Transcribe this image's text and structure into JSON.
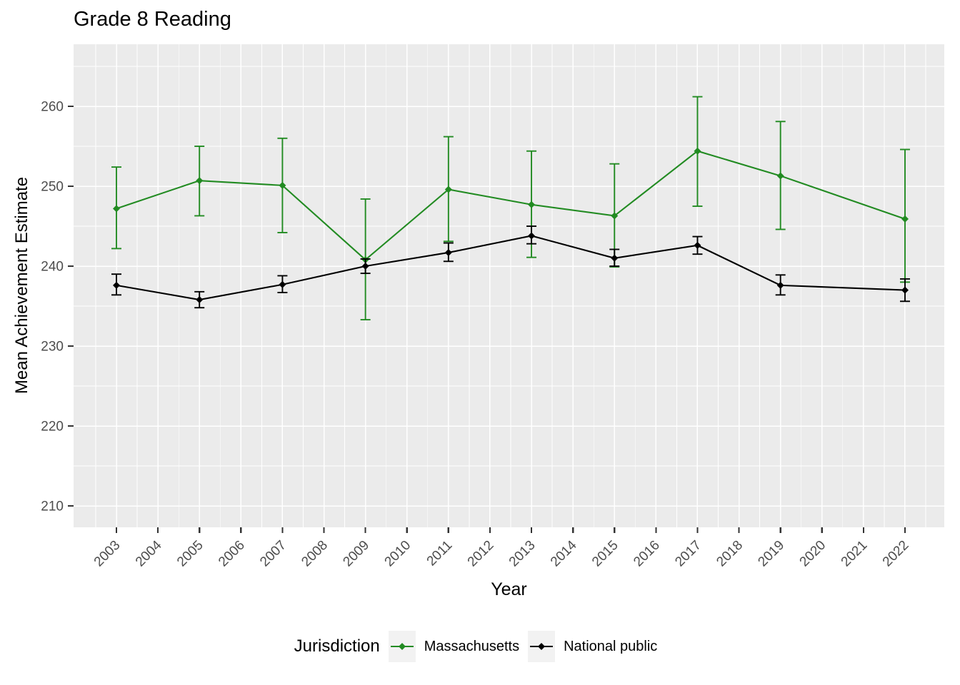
{
  "title": "Grade 8 Reading",
  "axes": {
    "x": {
      "label": "Year",
      "tick_labels": [
        "2003",
        "2004",
        "2005",
        "2006",
        "2007",
        "2008",
        "2009",
        "2010",
        "2011",
        "2012",
        "2013",
        "2014",
        "2015",
        "2016",
        "2017",
        "2018",
        "2019",
        "2020",
        "2021",
        "2022"
      ]
    },
    "y": {
      "label": "Mean Achievement Estimate",
      "tick_labels": [
        "210",
        "220",
        "230",
        "240",
        "250",
        "260"
      ]
    }
  },
  "legend": {
    "title": "Jurisdiction",
    "items": [
      {
        "label": "Massachusetts",
        "color": "#228B22"
      },
      {
        "label": "National public",
        "color": "#000000"
      }
    ]
  },
  "colors": {
    "panel_background": "#EBEBEB",
    "gridline": "#FFFFFF",
    "tick_mark": "#333333",
    "tick_label": "#4D4D4D",
    "title_text": "#000000",
    "legend_key_background": "#F2F2F2",
    "massachusetts": "#228B22",
    "national_public": "#000000"
  },
  "chart_data": {
    "type": "line",
    "title": "Grade 8 Reading",
    "xlabel": "Year",
    "ylabel": "Mean Achievement Estimate",
    "grid": true,
    "error_bars": true,
    "legend_position": "bottom",
    "legend_title": "Jurisdiction",
    "x_axis_ticks": [
      2003,
      2004,
      2005,
      2006,
      2007,
      2008,
      2009,
      2010,
      2011,
      2012,
      2013,
      2014,
      2015,
      2016,
      2017,
      2018,
      2019,
      2020,
      2021,
      2022
    ],
    "y_axis_ticks": [
      210,
      220,
      230,
      240,
      250,
      260
    ],
    "y_minor_ticks": [
      215,
      225,
      235,
      245,
      255,
      265
    ],
    "xlim": [
      2001.97,
      2022.95
    ],
    "ylim": [
      207.3,
      267.8
    ],
    "x": [
      2003,
      2005,
      2007,
      2009,
      2011,
      2013,
      2015,
      2017,
      2019,
      2022
    ],
    "series": [
      {
        "name": "Massachusetts",
        "color": "#228B22",
        "values": [
          247.2,
          250.7,
          250.1,
          240.8,
          249.6,
          247.7,
          246.3,
          254.4,
          251.3,
          245.9
        ],
        "ci_low": [
          242.2,
          246.3,
          244.2,
          233.3,
          243.1,
          241.1,
          239.9,
          247.5,
          244.6,
          238.0
        ],
        "ci_high": [
          252.4,
          255.0,
          256.0,
          248.4,
          256.2,
          254.4,
          252.8,
          261.2,
          258.1,
          254.6
        ]
      },
      {
        "name": "National public",
        "color": "#000000",
        "values": [
          237.6,
          235.8,
          237.7,
          240.0,
          241.7,
          243.8,
          241.0,
          242.6,
          237.6,
          237.0
        ],
        "ci_low": [
          236.4,
          234.8,
          236.7,
          239.1,
          240.6,
          242.8,
          240.0,
          241.5,
          236.4,
          235.6
        ],
        "ci_high": [
          239.0,
          236.8,
          238.8,
          240.9,
          242.9,
          245.0,
          242.1,
          243.7,
          238.9,
          238.4
        ]
      }
    ]
  }
}
